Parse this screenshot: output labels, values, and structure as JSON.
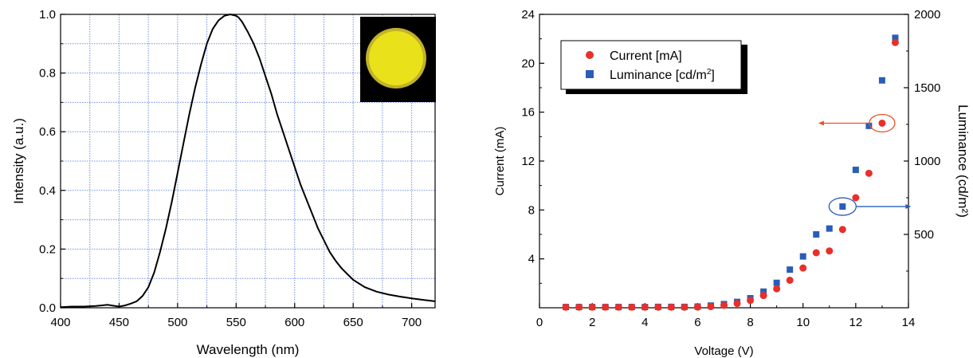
{
  "chart_data": [
    {
      "type": "line",
      "xlabel": "Wavelength (nm)",
      "ylabel": "Intensity (a.u.)",
      "xlim": [
        400,
        720
      ],
      "ylim": [
        0,
        1.0
      ],
      "xticks": [
        "400",
        "450",
        "500",
        "550",
        "600",
        "650",
        "700"
      ],
      "xtick_values": [
        400,
        450,
        500,
        550,
        600,
        650,
        700
      ],
      "yticks": [
        "0.0",
        "0.2",
        "0.4",
        "0.6",
        "0.8",
        "1.0"
      ],
      "ytick_values": [
        0,
        0.2,
        0.4,
        0.6,
        0.8,
        1.0
      ],
      "grid": true,
      "line_color": "#000000",
      "grid_color": "#6f8fe0",
      "inset": {
        "description_color_background": "#000000",
        "emission_color": "#e9e21a"
      },
      "series": [
        {
          "x": [
            400,
            410,
            420,
            430,
            440,
            450,
            455,
            460,
            465,
            470,
            475,
            480,
            485,
            490,
            495,
            500,
            505,
            510,
            515,
            520,
            525,
            530,
            535,
            540,
            545,
            550,
            552,
            555,
            560,
            565,
            570,
            575,
            580,
            585,
            590,
            595,
            600,
            605,
            610,
            615,
            620,
            625,
            630,
            635,
            640,
            645,
            650,
            660,
            670,
            680,
            690,
            700,
            710,
            720
          ],
          "y": [
            0.002,
            0.004,
            0.004,
            0.006,
            0.01,
            0.004,
            0.008,
            0.014,
            0.022,
            0.04,
            0.07,
            0.12,
            0.19,
            0.27,
            0.36,
            0.46,
            0.56,
            0.66,
            0.75,
            0.83,
            0.9,
            0.95,
            0.98,
            0.995,
            1.0,
            0.995,
            0.99,
            0.975,
            0.94,
            0.9,
            0.85,
            0.79,
            0.73,
            0.66,
            0.6,
            0.54,
            0.48,
            0.42,
            0.37,
            0.32,
            0.27,
            0.23,
            0.19,
            0.16,
            0.135,
            0.115,
            0.095,
            0.07,
            0.055,
            0.045,
            0.038,
            0.032,
            0.027,
            0.022
          ]
        }
      ]
    },
    {
      "type": "scatter",
      "xlabel": "Voltage (V)",
      "ylabel": "Current (mA)",
      "y2label": "Luminance (cd/m²)",
      "xlim": [
        0,
        14
      ],
      "ylim": [
        0,
        24
      ],
      "y2lim": [
        0,
        2000
      ],
      "xticks": [
        "0",
        "2",
        "4",
        "6",
        "8",
        "10",
        "12",
        "14"
      ],
      "xtick_values": [
        0,
        2,
        4,
        6,
        8,
        10,
        12,
        14
      ],
      "yticks": [
        "4",
        "8",
        "12",
        "16",
        "20",
        "24"
      ],
      "ytick_values": [
        4,
        8,
        12,
        16,
        20,
        24
      ],
      "y2ticks": [
        "500",
        "1000",
        "1500",
        "2000"
      ],
      "y2tick_values": [
        500,
        1000,
        1500,
        2000
      ],
      "grid": false,
      "legend_position": "top-left",
      "legend": [
        {
          "label": "Current [mA]",
          "marker": "circle",
          "color": "#e8302a"
        },
        {
          "label": "Luminance [cd/m",
          "sup": "2",
          "label_end": "]",
          "marker": "square",
          "color": "#2a5db8"
        }
      ],
      "series": [
        {
          "name": "Current [mA]",
          "axis": "left",
          "marker": "circle",
          "color": "#e8302a",
          "x": [
            1,
            1.5,
            2,
            2.5,
            3,
            3.5,
            4,
            4.5,
            5,
            5.5,
            6,
            6.5,
            7,
            7.5,
            8,
            8.5,
            9,
            9.5,
            10,
            10.5,
            11,
            11.5,
            12,
            12.5,
            13,
            13.5
          ],
          "y": [
            0.05,
            0.05,
            0.05,
            0.05,
            0.05,
            0.05,
            0.05,
            0.05,
            0.05,
            0.05,
            0.06,
            0.1,
            0.2,
            0.35,
            0.6,
            1.0,
            1.55,
            2.25,
            3.25,
            4.5,
            4.65,
            6.4,
            9.0,
            11.0,
            15.1,
            21.7
          ]
        },
        {
          "name": "Luminance [cd/m²]",
          "axis": "right",
          "marker": "square",
          "color": "#2a5db8",
          "x": [
            1,
            1.5,
            2,
            2.5,
            3,
            3.5,
            4,
            4.5,
            5,
            5.5,
            6,
            6.5,
            7,
            7.5,
            8,
            8.5,
            9,
            9.5,
            10,
            10.5,
            11,
            11.5,
            12,
            12.5,
            13,
            13.5
          ],
          "y": [
            5,
            5,
            5,
            5,
            5,
            5,
            5,
            6,
            6,
            6,
            8,
            15,
            25,
            40,
            65,
            110,
            170,
            260,
            350,
            500,
            540,
            690,
            940,
            1240,
            1550,
            1840
          ]
        }
      ],
      "annotations": [
        {
          "target": "Current [mA]",
          "arrow_direction": "left",
          "color": "#e8502a"
        },
        {
          "target": "Luminance [cd/m²]",
          "arrow_direction": "right",
          "color": "#2a5db8"
        }
      ]
    }
  ]
}
